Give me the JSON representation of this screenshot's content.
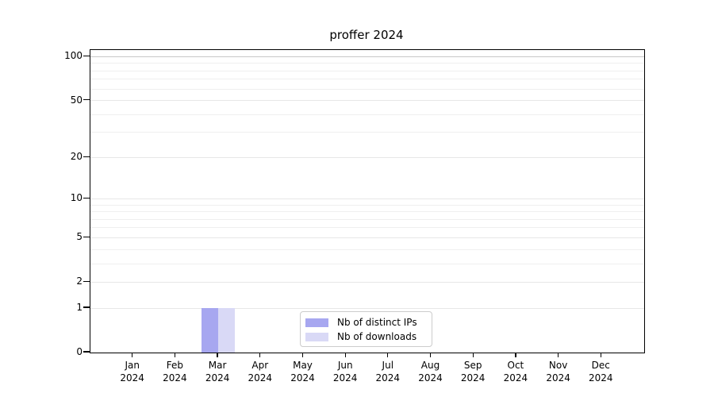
{
  "chart_data": {
    "type": "bar",
    "title": "proffer 2024",
    "x": {
      "months": [
        "Jan",
        "Feb",
        "Mar",
        "Apr",
        "May",
        "Jun",
        "Jul",
        "Aug",
        "Sep",
        "Oct",
        "Nov",
        "Dec"
      ],
      "year": "2024"
    },
    "series": [
      {
        "name": "Nb of distinct IPs",
        "color": "#a7a7f0",
        "values": [
          0,
          0,
          1,
          0,
          0,
          0,
          0,
          0,
          0,
          0,
          0,
          0
        ]
      },
      {
        "name": "Nb of downloads",
        "color": "#d9d9f6",
        "values": [
          0,
          0,
          1,
          0,
          0,
          0,
          0,
          0,
          0,
          0,
          0,
          0
        ]
      }
    ],
    "y_axis": {
      "scale": "log1p",
      "ticks": [
        0,
        1,
        2,
        5,
        10,
        20,
        50,
        100
      ],
      "minor_ticks": [
        3,
        4,
        6,
        7,
        8,
        9,
        30,
        40,
        60,
        70,
        80,
        90
      ],
      "lim": [
        0,
        111
      ]
    },
    "legend": {
      "position": "lower-center",
      "entries": [
        "Nb of distinct IPs",
        "Nb of downloads"
      ]
    },
    "colors": {
      "bar_distinct_ips": "#a7a7f0",
      "bar_downloads": "#d9d9f6",
      "grid_minor": "#efefef",
      "grid_major": "#e7e7e7",
      "grid_top": "#c8c8c8",
      "axis": "#000000",
      "legend_border": "#cccccc"
    }
  }
}
